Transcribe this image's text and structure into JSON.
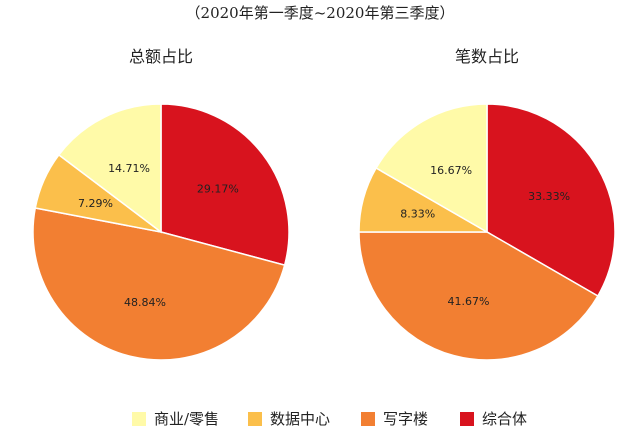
{
  "chart_data": [
    {
      "type": "pie",
      "title": "（2020年第一季度~2020年第三季度）",
      "subtitle": "总额占比",
      "categories": [
        "综合体",
        "写字楼",
        "数据中心",
        "商业/零售"
      ],
      "values": [
        29.17,
        48.84,
        7.29,
        14.71
      ],
      "labels": [
        "29.17%",
        "48.84%",
        "7.29%",
        "14.71%"
      ]
    },
    {
      "type": "pie",
      "subtitle": "笔数占比",
      "categories": [
        "综合体",
        "写字楼",
        "数据中心",
        "商业/零售"
      ],
      "values": [
        33.33,
        41.67,
        8.33,
        16.67
      ],
      "labels": [
        "33.33%",
        "41.67%",
        "8.33%",
        "16.67%"
      ]
    }
  ],
  "legend": {
    "items": [
      {
        "label": "商业/零售",
        "color": "#fffaa8"
      },
      {
        "label": "数据中心",
        "color": "#fbbf4b"
      },
      {
        "label": "写字楼",
        "color": "#f27f32"
      },
      {
        "label": "综合体",
        "color": "#d8131e"
      }
    ]
  },
  "colors": {
    "综合体": "#d8131e",
    "写字楼": "#f27f32",
    "数据中心": "#fbbf4b",
    "商业/零售": "#fffaa8"
  }
}
